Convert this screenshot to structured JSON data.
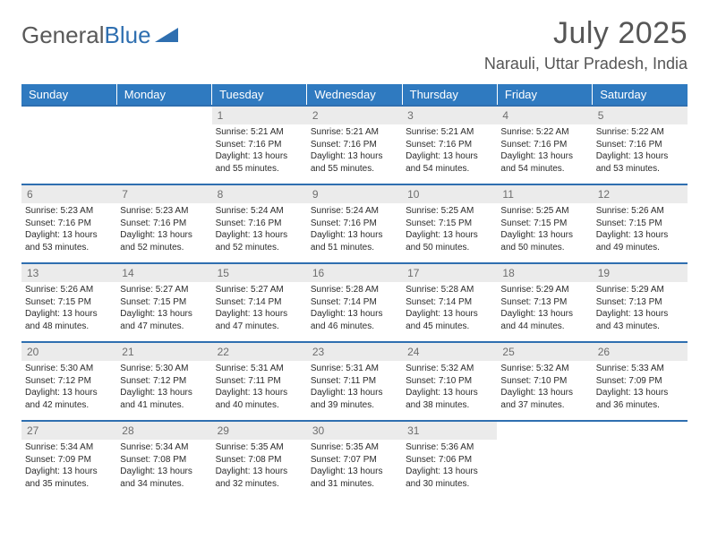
{
  "brand": {
    "part1": "General",
    "part2": "Blue"
  },
  "title": "July 2025",
  "location": "Narauli, Uttar Pradesh, India",
  "style": {
    "header_bg": "#2f7ac0",
    "header_fg": "#ffffff",
    "row_border": "#2f6fb0",
    "daynum_bg": "#ebebeb",
    "daynum_fg": "#6e6e6e",
    "body_font_size": 10,
    "title_color": "#565656",
    "logo_gray": "#595959",
    "logo_blue": "#2f6fb0"
  },
  "weekdays": [
    "Sunday",
    "Monday",
    "Tuesday",
    "Wednesday",
    "Thursday",
    "Friday",
    "Saturday"
  ],
  "weeks": [
    [
      {
        "n": "",
        "sunrise": "",
        "sunset": "",
        "daylight": "",
        "empty": true
      },
      {
        "n": "",
        "sunrise": "",
        "sunset": "",
        "daylight": "",
        "empty": true
      },
      {
        "n": "1",
        "sunrise": "Sunrise: 5:21 AM",
        "sunset": "Sunset: 7:16 PM",
        "daylight": "Daylight: 13 hours and 55 minutes."
      },
      {
        "n": "2",
        "sunrise": "Sunrise: 5:21 AM",
        "sunset": "Sunset: 7:16 PM",
        "daylight": "Daylight: 13 hours and 55 minutes."
      },
      {
        "n": "3",
        "sunrise": "Sunrise: 5:21 AM",
        "sunset": "Sunset: 7:16 PM",
        "daylight": "Daylight: 13 hours and 54 minutes."
      },
      {
        "n": "4",
        "sunrise": "Sunrise: 5:22 AM",
        "sunset": "Sunset: 7:16 PM",
        "daylight": "Daylight: 13 hours and 54 minutes."
      },
      {
        "n": "5",
        "sunrise": "Sunrise: 5:22 AM",
        "sunset": "Sunset: 7:16 PM",
        "daylight": "Daylight: 13 hours and 53 minutes."
      }
    ],
    [
      {
        "n": "6",
        "sunrise": "Sunrise: 5:23 AM",
        "sunset": "Sunset: 7:16 PM",
        "daylight": "Daylight: 13 hours and 53 minutes."
      },
      {
        "n": "7",
        "sunrise": "Sunrise: 5:23 AM",
        "sunset": "Sunset: 7:16 PM",
        "daylight": "Daylight: 13 hours and 52 minutes."
      },
      {
        "n": "8",
        "sunrise": "Sunrise: 5:24 AM",
        "sunset": "Sunset: 7:16 PM",
        "daylight": "Daylight: 13 hours and 52 minutes."
      },
      {
        "n": "9",
        "sunrise": "Sunrise: 5:24 AM",
        "sunset": "Sunset: 7:16 PM",
        "daylight": "Daylight: 13 hours and 51 minutes."
      },
      {
        "n": "10",
        "sunrise": "Sunrise: 5:25 AM",
        "sunset": "Sunset: 7:15 PM",
        "daylight": "Daylight: 13 hours and 50 minutes."
      },
      {
        "n": "11",
        "sunrise": "Sunrise: 5:25 AM",
        "sunset": "Sunset: 7:15 PM",
        "daylight": "Daylight: 13 hours and 50 minutes."
      },
      {
        "n": "12",
        "sunrise": "Sunrise: 5:26 AM",
        "sunset": "Sunset: 7:15 PM",
        "daylight": "Daylight: 13 hours and 49 minutes."
      }
    ],
    [
      {
        "n": "13",
        "sunrise": "Sunrise: 5:26 AM",
        "sunset": "Sunset: 7:15 PM",
        "daylight": "Daylight: 13 hours and 48 minutes."
      },
      {
        "n": "14",
        "sunrise": "Sunrise: 5:27 AM",
        "sunset": "Sunset: 7:15 PM",
        "daylight": "Daylight: 13 hours and 47 minutes."
      },
      {
        "n": "15",
        "sunrise": "Sunrise: 5:27 AM",
        "sunset": "Sunset: 7:14 PM",
        "daylight": "Daylight: 13 hours and 47 minutes."
      },
      {
        "n": "16",
        "sunrise": "Sunrise: 5:28 AM",
        "sunset": "Sunset: 7:14 PM",
        "daylight": "Daylight: 13 hours and 46 minutes."
      },
      {
        "n": "17",
        "sunrise": "Sunrise: 5:28 AM",
        "sunset": "Sunset: 7:14 PM",
        "daylight": "Daylight: 13 hours and 45 minutes."
      },
      {
        "n": "18",
        "sunrise": "Sunrise: 5:29 AM",
        "sunset": "Sunset: 7:13 PM",
        "daylight": "Daylight: 13 hours and 44 minutes."
      },
      {
        "n": "19",
        "sunrise": "Sunrise: 5:29 AM",
        "sunset": "Sunset: 7:13 PM",
        "daylight": "Daylight: 13 hours and 43 minutes."
      }
    ],
    [
      {
        "n": "20",
        "sunrise": "Sunrise: 5:30 AM",
        "sunset": "Sunset: 7:12 PM",
        "daylight": "Daylight: 13 hours and 42 minutes."
      },
      {
        "n": "21",
        "sunrise": "Sunrise: 5:30 AM",
        "sunset": "Sunset: 7:12 PM",
        "daylight": "Daylight: 13 hours and 41 minutes."
      },
      {
        "n": "22",
        "sunrise": "Sunrise: 5:31 AM",
        "sunset": "Sunset: 7:11 PM",
        "daylight": "Daylight: 13 hours and 40 minutes."
      },
      {
        "n": "23",
        "sunrise": "Sunrise: 5:31 AM",
        "sunset": "Sunset: 7:11 PM",
        "daylight": "Daylight: 13 hours and 39 minutes."
      },
      {
        "n": "24",
        "sunrise": "Sunrise: 5:32 AM",
        "sunset": "Sunset: 7:10 PM",
        "daylight": "Daylight: 13 hours and 38 minutes."
      },
      {
        "n": "25",
        "sunrise": "Sunrise: 5:32 AM",
        "sunset": "Sunset: 7:10 PM",
        "daylight": "Daylight: 13 hours and 37 minutes."
      },
      {
        "n": "26",
        "sunrise": "Sunrise: 5:33 AM",
        "sunset": "Sunset: 7:09 PM",
        "daylight": "Daylight: 13 hours and 36 minutes."
      }
    ],
    [
      {
        "n": "27",
        "sunrise": "Sunrise: 5:34 AM",
        "sunset": "Sunset: 7:09 PM",
        "daylight": "Daylight: 13 hours and 35 minutes."
      },
      {
        "n": "28",
        "sunrise": "Sunrise: 5:34 AM",
        "sunset": "Sunset: 7:08 PM",
        "daylight": "Daylight: 13 hours and 34 minutes."
      },
      {
        "n": "29",
        "sunrise": "Sunrise: 5:35 AM",
        "sunset": "Sunset: 7:08 PM",
        "daylight": "Daylight: 13 hours and 32 minutes."
      },
      {
        "n": "30",
        "sunrise": "Sunrise: 5:35 AM",
        "sunset": "Sunset: 7:07 PM",
        "daylight": "Daylight: 13 hours and 31 minutes."
      },
      {
        "n": "31",
        "sunrise": "Sunrise: 5:36 AM",
        "sunset": "Sunset: 7:06 PM",
        "daylight": "Daylight: 13 hours and 30 minutes."
      },
      {
        "n": "",
        "sunrise": "",
        "sunset": "",
        "daylight": "",
        "empty": true
      },
      {
        "n": "",
        "sunrise": "",
        "sunset": "",
        "daylight": "",
        "empty": true
      }
    ]
  ]
}
